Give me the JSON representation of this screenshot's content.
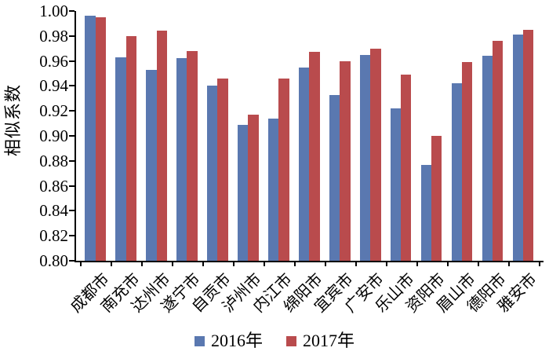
{
  "chart_data": {
    "type": "bar",
    "title": "",
    "xlabel": "",
    "ylabel": "相似系数",
    "ylim": [
      0.8,
      1.0
    ],
    "ytick_step": 0.02,
    "yticks": [
      "1.00",
      "0.98",
      "0.96",
      "0.94",
      "0.92",
      "0.90",
      "0.88",
      "0.86",
      "0.84",
      "0.82",
      "0.80"
    ],
    "grid": false,
    "legend_position": "bottom",
    "categories": [
      "成都市",
      "南充市",
      "达州市",
      "遂宁市",
      "自贡市",
      "泸州市",
      "内江市",
      "绵阳市",
      "宜宾市",
      "广安市",
      "乐山市",
      "资阳市",
      "眉山市",
      "德阳市",
      "雅安市"
    ],
    "series": [
      {
        "name": "2016年",
        "color": "#5a78b0",
        "values": [
          0.996,
          0.963,
          0.953,
          0.962,
          0.94,
          0.909,
          0.914,
          0.955,
          0.933,
          0.965,
          0.922,
          0.877,
          0.942,
          0.964,
          0.981
        ]
      },
      {
        "name": "2017年",
        "color": "#b94b4d",
        "values": [
          0.995,
          0.98,
          0.984,
          0.968,
          0.946,
          0.917,
          0.946,
          0.967,
          0.96,
          0.97,
          0.949,
          0.9,
          0.959,
          0.976,
          0.985
        ]
      }
    ],
    "axis_color": "#000000"
  }
}
